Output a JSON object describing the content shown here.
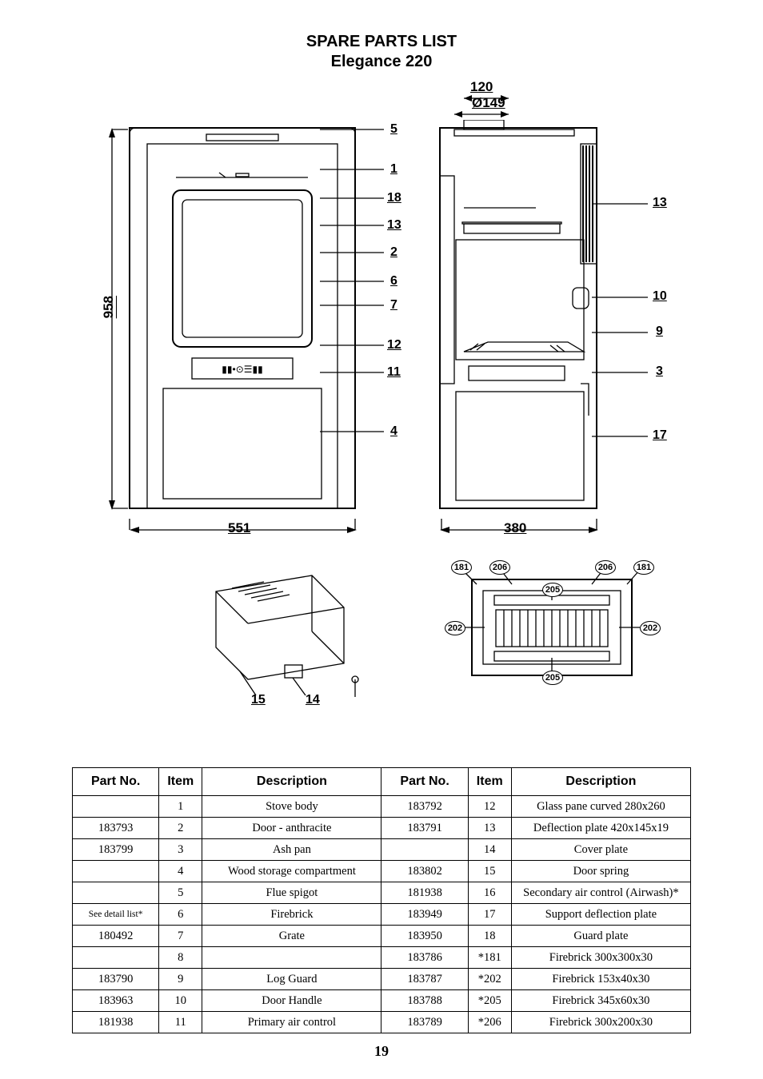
{
  "title": {
    "line1": "SPARE PARTS LIST",
    "line2": "Elegance 220"
  },
  "page_number": "19",
  "dimensions": {
    "top_offset": "120",
    "flue_diameter": "Ø149",
    "height": "958",
    "width_front": "551",
    "width_side": "380"
  },
  "callouts_right_of_front": [
    "5",
    "1",
    "18",
    "13",
    "2",
    "6",
    "7",
    "12",
    "11",
    "4"
  ],
  "callouts_side_right": [
    "13",
    "10",
    "9",
    "3",
    "17"
  ],
  "callouts_bottom_detail": [
    "15",
    "14"
  ],
  "balloons_grate_detail": [
    "181",
    "206",
    "206",
    "181",
    "205",
    "202",
    "202",
    "205"
  ],
  "table": {
    "headers": {
      "partno": "Part No.",
      "item": "Item",
      "description": "Description"
    },
    "left": [
      {
        "partno": "",
        "item": "1",
        "desc": "Stove body"
      },
      {
        "partno": "183793",
        "item": "2",
        "desc": "Door - anthracite"
      },
      {
        "partno": "183799",
        "item": "3",
        "desc": "Ash pan"
      },
      {
        "partno": "",
        "item": "4",
        "desc": "Wood storage compartment"
      },
      {
        "partno": "",
        "item": "5",
        "desc": "Flue spigot"
      },
      {
        "partno": "See detail list*",
        "item": "6",
        "desc": "Firebrick"
      },
      {
        "partno": "180492",
        "item": "7",
        "desc": "Grate"
      },
      {
        "partno": "",
        "item": "8",
        "desc": ""
      },
      {
        "partno": "183790",
        "item": "9",
        "desc": "Log Guard"
      },
      {
        "partno": "183963",
        "item": "10",
        "desc": "Door Handle"
      },
      {
        "partno": "181938",
        "item": "11",
        "desc": "Primary air control"
      }
    ],
    "right": [
      {
        "partno": "183792",
        "item": "12",
        "desc": "Glass pane curved 280x260"
      },
      {
        "partno": "183791",
        "item": "13",
        "desc": "Deflection plate 420x145x19"
      },
      {
        "partno": "",
        "item": "14",
        "desc": "Cover plate"
      },
      {
        "partno": "183802",
        "item": "15",
        "desc": "Door spring"
      },
      {
        "partno": "181938",
        "item": "16",
        "desc": "Secondary air control (Airwash)*"
      },
      {
        "partno": "183949",
        "item": "17",
        "desc": "Support deflection plate"
      },
      {
        "partno": "183950",
        "item": "18",
        "desc": "Guard plate"
      },
      {
        "partno": "183786",
        "item": "*181",
        "desc": "Firebrick 300x300x30"
      },
      {
        "partno": "183787",
        "item": "*202",
        "desc": "Firebrick 153x40x30"
      },
      {
        "partno": "183788",
        "item": "*205",
        "desc": "Firebrick 345x60x30"
      },
      {
        "partno": "183789",
        "item": "*206",
        "desc": "Firebrick 300x200x30"
      }
    ]
  }
}
